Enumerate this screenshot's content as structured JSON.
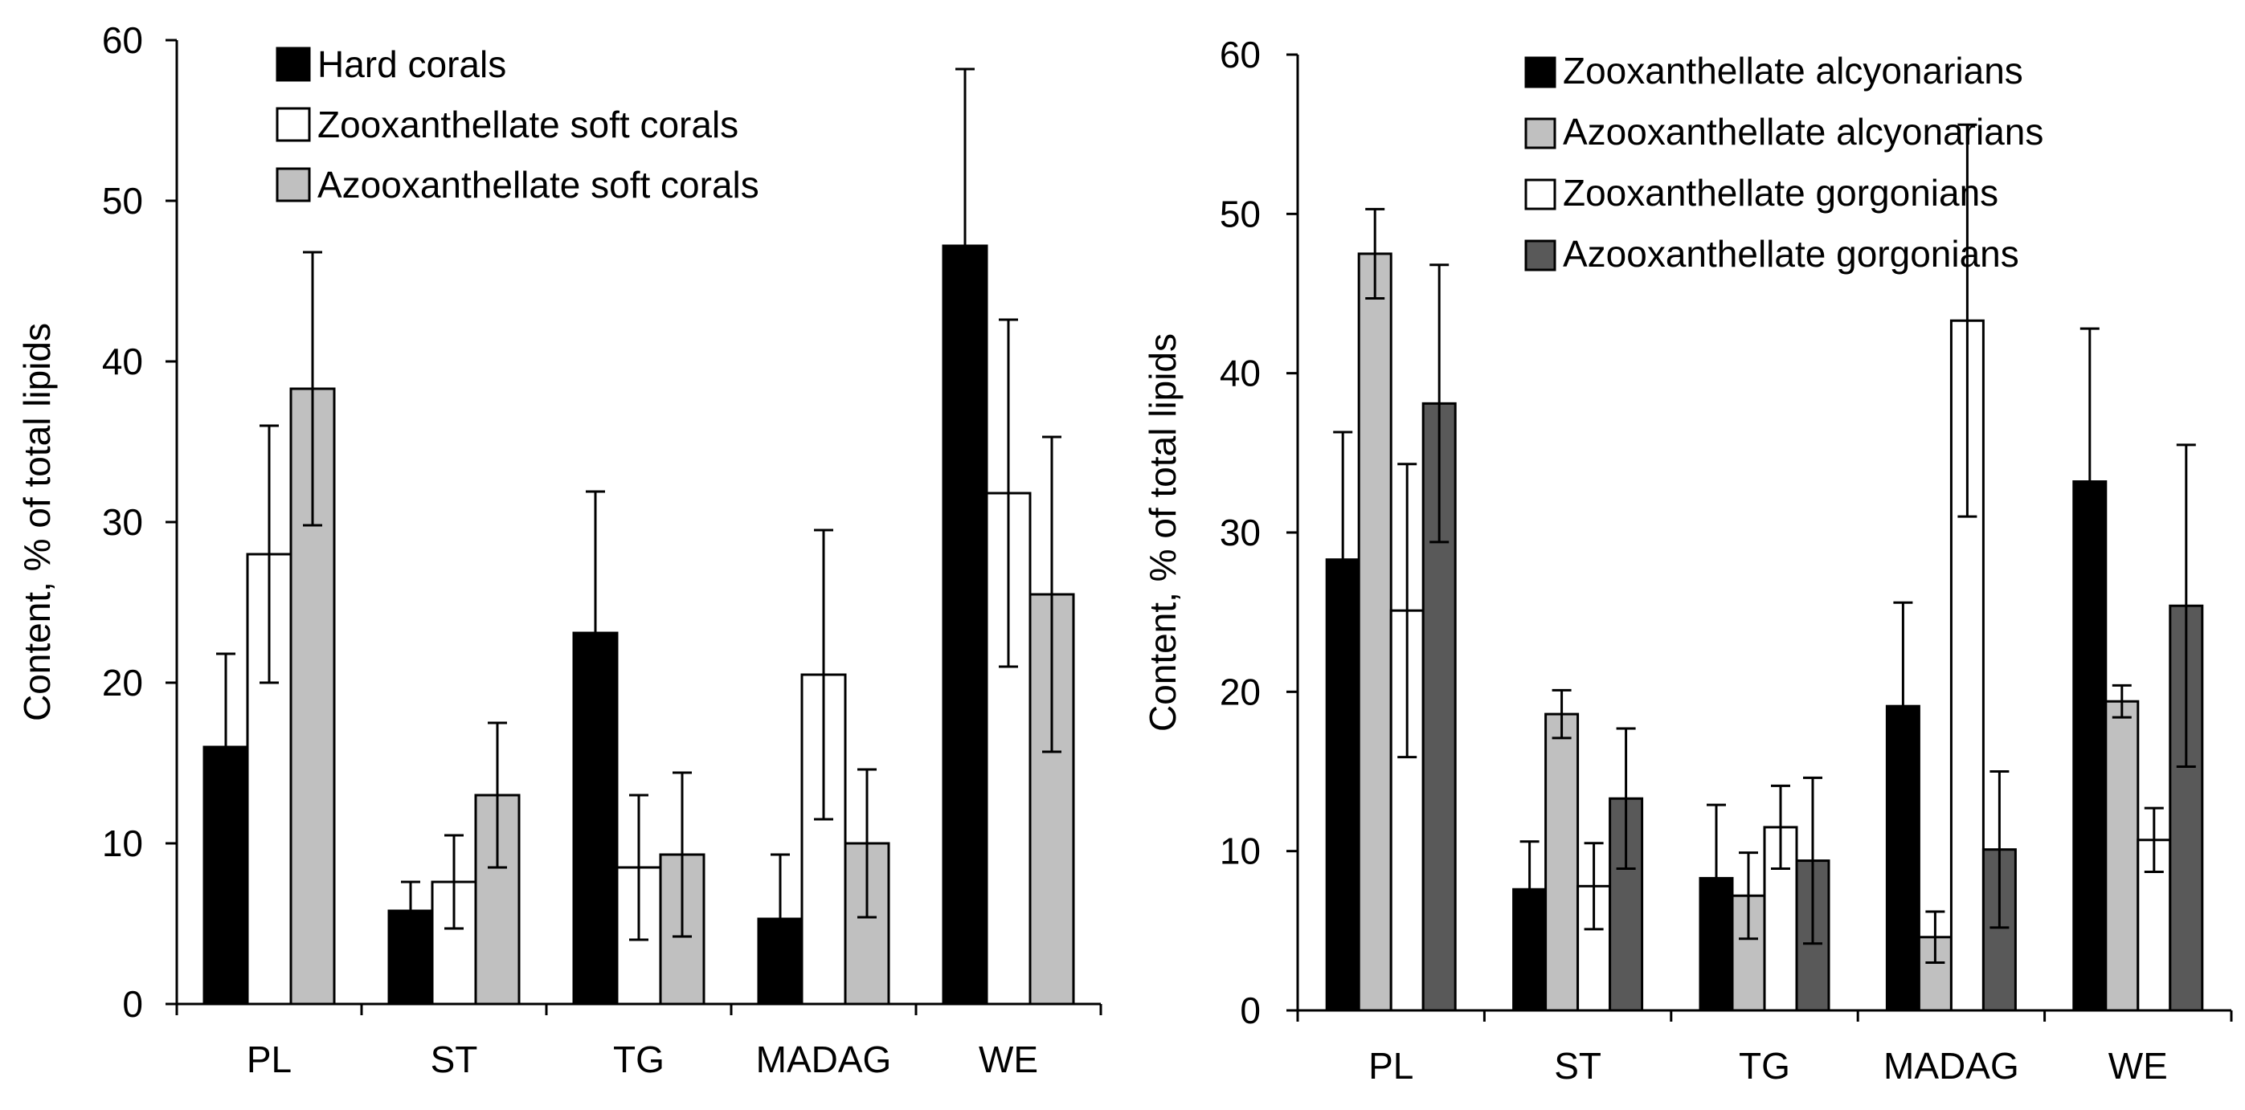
{
  "colors": {
    "black": "#000000",
    "white": "#ffffff",
    "light_gray": "#c0c0c0",
    "dark_gray": "#595959"
  },
  "chart_data": [
    {
      "type": "bar",
      "categories": [
        "PL",
        "ST",
        "TG",
        "MADAG",
        "WE"
      ],
      "ylabel": "Content, % of total lipids",
      "ylim": [
        0,
        60
      ],
      "yticks": [
        0,
        10,
        20,
        30,
        40,
        50,
        60
      ],
      "grid": false,
      "legend_position": "top",
      "series": [
        {
          "name": "Hard corals",
          "color": "#000000",
          "values": [
            16.0,
            5.8,
            23.1,
            5.3,
            47.2
          ],
          "errors": [
            5.8,
            1.8,
            8.8,
            4.0,
            11.0
          ]
        },
        {
          "name": "Zooxanthellate soft corals",
          "color": "#ffffff",
          "values": [
            28.0,
            7.6,
            8.5,
            20.5,
            31.8
          ],
          "errors": [
            8.0,
            2.9,
            4.5,
            9.0,
            10.8
          ]
        },
        {
          "name": "Azooxanthellate soft corals",
          "color": "#c0c0c0",
          "values": [
            38.3,
            13.0,
            9.3,
            10.0,
            25.5
          ],
          "errors": [
            8.5,
            4.5,
            5.1,
            4.6,
            9.8
          ]
        }
      ]
    },
    {
      "type": "bar",
      "categories": [
        "PL",
        "ST",
        "TG",
        "MADAG",
        "WE"
      ],
      "ylabel": "Content, % of total lipids",
      "ylim": [
        0,
        60
      ],
      "yticks": [
        0,
        10,
        20,
        30,
        40,
        50,
        60
      ],
      "grid": false,
      "legend_position": "top-right",
      "series": [
        {
          "name": "Zooxanthellate alcyonarians",
          "color": "#000000",
          "values": [
            28.3,
            7.6,
            8.3,
            19.1,
            33.2
          ],
          "errors": [
            8.0,
            3.0,
            4.6,
            6.5,
            9.6
          ]
        },
        {
          "name": "Azooxanthellate alcyonarians",
          "color": "#c0c0c0",
          "values": [
            47.5,
            18.6,
            7.2,
            4.6,
            19.4
          ],
          "errors": [
            2.8,
            1.5,
            2.7,
            1.6,
            1.0
          ]
        },
        {
          "name": "Zooxanthellate gorgonians",
          "color": "#ffffff",
          "values": [
            25.1,
            7.8,
            11.5,
            43.3,
            10.7
          ],
          "errors": [
            9.2,
            2.7,
            2.6,
            12.3,
            2.0
          ]
        },
        {
          "name": "Azooxanthellate gorgonians",
          "color": "#595959",
          "values": [
            38.1,
            13.3,
            9.4,
            10.1,
            25.4
          ],
          "errors": [
            8.7,
            4.4,
            5.2,
            4.9,
            10.1
          ]
        }
      ]
    }
  ]
}
